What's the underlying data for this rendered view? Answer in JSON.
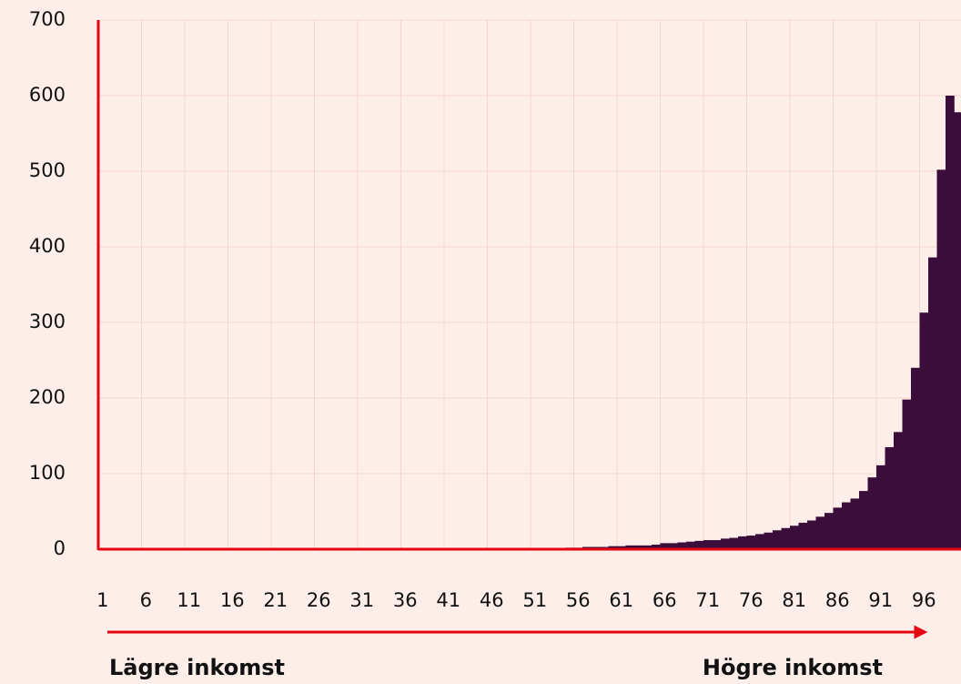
{
  "chart_data": {
    "type": "bar",
    "categories": [
      "1",
      null,
      null,
      null,
      null,
      "6",
      null,
      null,
      null,
      null,
      "11",
      null,
      null,
      null,
      null,
      "16",
      null,
      null,
      null,
      null,
      "21",
      null,
      null,
      null,
      null,
      "26",
      null,
      null,
      null,
      null,
      "31",
      null,
      null,
      null,
      null,
      "36",
      null,
      null,
      null,
      null,
      "41",
      null,
      null,
      null,
      null,
      "46",
      null,
      null,
      null,
      null,
      "51",
      null,
      null,
      null,
      null,
      "56",
      null,
      null,
      null,
      null,
      "61",
      null,
      null,
      null,
      null,
      "66",
      null,
      null,
      null,
      null,
      "71",
      null,
      null,
      null,
      null,
      "76",
      null,
      null,
      null,
      null,
      "81",
      null,
      null,
      null,
      null,
      "86",
      null,
      null,
      null,
      null,
      "91",
      null,
      null,
      null,
      null,
      "96",
      null,
      null,
      null,
      null
    ],
    "values": [
      0,
      0,
      0,
      0,
      0,
      0,
      0,
      0,
      0,
      0,
      0,
      0,
      0,
      0,
      0,
      0,
      0,
      0,
      0,
      0,
      0,
      0,
      0,
      0,
      0,
      0,
      0,
      0,
      0,
      0,
      0,
      0,
      0,
      0,
      0,
      0,
      0,
      0,
      0,
      0,
      0,
      0,
      0,
      0,
      0,
      0,
      0,
      0,
      0,
      0,
      0,
      0,
      0,
      1,
      2,
      2,
      3,
      3,
      3,
      4,
      4,
      5,
      5,
      5,
      6,
      8,
      8,
      9,
      10,
      11,
      12,
      12,
      14,
      15,
      17,
      18,
      20,
      22,
      25,
      28,
      31,
      35,
      38,
      43,
      48,
      55,
      62,
      67,
      77,
      95,
      111,
      135,
      155,
      198,
      240,
      313,
      386,
      502,
      600,
      578
    ],
    "color": "#3b0d3a",
    "ylim": [
      0,
      700
    ],
    "yticks": [
      0,
      100,
      200,
      300,
      400,
      500,
      600,
      700
    ],
    "grid": true,
    "arrow_labels": {
      "left": "Lägre inkomst",
      "right": "Högre inkomst"
    }
  }
}
